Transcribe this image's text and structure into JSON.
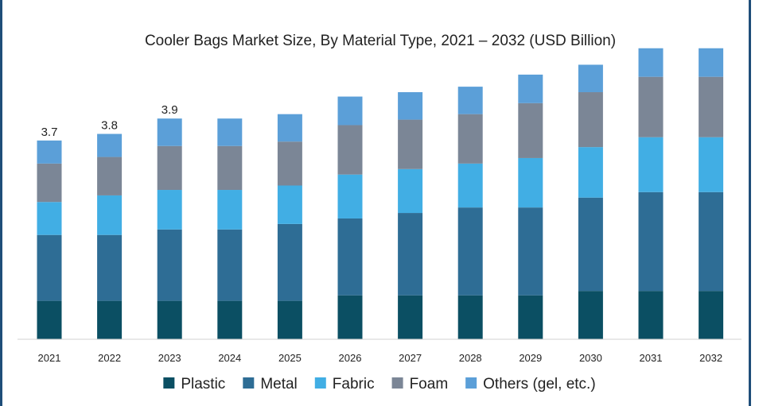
{
  "chart_data": {
    "type": "bar",
    "stacked": true,
    "title": "Cooler Bags Market Size, By Material Type, 2021 – 2032 (USD Billion)",
    "xlabel": "",
    "ylabel": "",
    "categories": [
      "2021",
      "2022",
      "2023",
      "2024",
      "2025",
      "2026",
      "2027",
      "2028",
      "2029",
      "2030",
      "2031",
      "2032"
    ],
    "series": [
      {
        "name": "Plastic",
        "color": "#0b4f63",
        "values": [
          0.7,
          0.7,
          0.7,
          0.7,
          0.7,
          0.8,
          0.8,
          0.8,
          0.8,
          0.88,
          0.88,
          0.88
        ]
      },
      {
        "name": "Metal",
        "color": "#2e6d95",
        "values": [
          1.2,
          1.2,
          1.3,
          1.3,
          1.4,
          1.4,
          1.5,
          1.6,
          1.6,
          1.7,
          1.8,
          1.8
        ]
      },
      {
        "name": "Fabric",
        "color": "#41aee4",
        "values": [
          0.6,
          0.72,
          0.72,
          0.72,
          0.7,
          0.8,
          0.8,
          0.8,
          0.9,
          0.92,
          1.0,
          1.0
        ]
      },
      {
        "name": "Foam",
        "color": "#7b8696",
        "values": [
          0.7,
          0.7,
          0.8,
          0.8,
          0.8,
          0.9,
          0.9,
          0.9,
          1.0,
          1.0,
          1.1,
          1.1
        ]
      },
      {
        "name": "Others (gel, etc.)",
        "color": "#5b9fd8",
        "values": [
          0.42,
          0.42,
          0.5,
          0.5,
          0.5,
          0.52,
          0.5,
          0.5,
          0.52,
          0.5,
          0.52,
          0.52
        ]
      }
    ],
    "data_labels": [
      {
        "category": "2021",
        "text": "3.7"
      },
      {
        "category": "2022",
        "text": "3.8"
      },
      {
        "category": "2023",
        "text": "3.9"
      }
    ],
    "ylim": [
      0,
      5.6
    ],
    "grid": false,
    "legend_position": "bottom"
  }
}
